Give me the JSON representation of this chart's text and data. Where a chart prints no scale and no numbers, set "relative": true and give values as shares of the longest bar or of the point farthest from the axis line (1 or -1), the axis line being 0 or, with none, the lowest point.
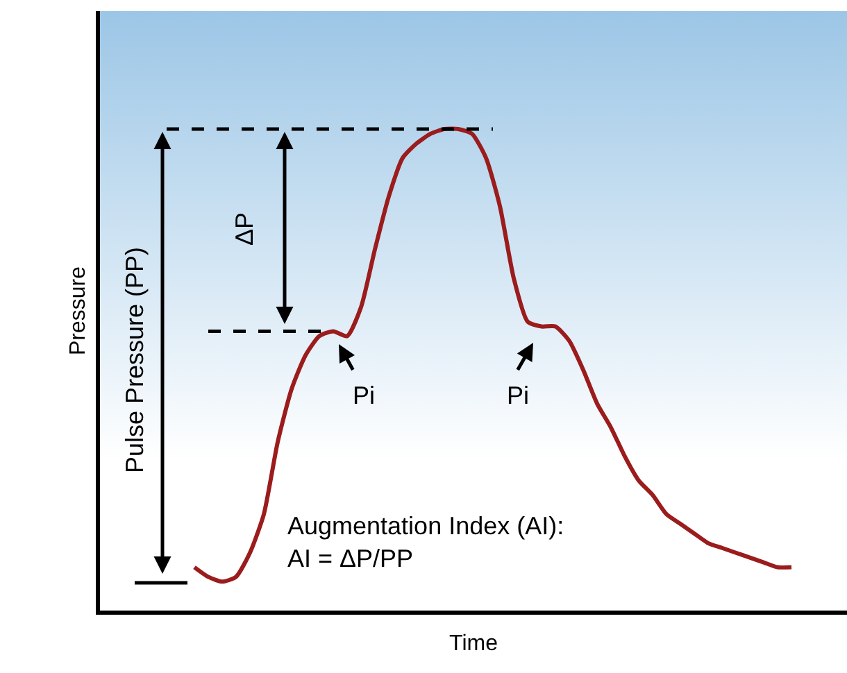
{
  "chart_data": {
    "type": "line",
    "relative": true,
    "xlabel": "Time",
    "ylabel": "Pressure",
    "categories": [
      null,
      null,
      null,
      null,
      null,
      null,
      null,
      null,
      null,
      null,
      null,
      null,
      null,
      null,
      null,
      null,
      null,
      null,
      null,
      null,
      null,
      null,
      null,
      null,
      null,
      null,
      null,
      null,
      null,
      null,
      null,
      null,
      null,
      null,
      null,
      null,
      null,
      null,
      null,
      null,
      null,
      null,
      null,
      null
    ],
    "series": [
      {
        "color": "#9b1c1c",
        "values": [
          0.09,
          0.07,
          0.06,
          0.07,
          0.12,
          0.2,
          0.35,
          0.46,
          0.53,
          0.57,
          0.58,
          0.57,
          0.63,
          0.75,
          0.86,
          0.94,
          0.97,
          0.99,
          1,
          1,
          0.99,
          0.94,
          0.84,
          0.69,
          0.6,
          0.59,
          0.59,
          0.56,
          0.5,
          0.43,
          0.38,
          0.32,
          0.27,
          0.24,
          0.2,
          0.18,
          0.16,
          0.14,
          0.13,
          0.12,
          0.11,
          0.1,
          0.09,
          0.09
        ]
      }
    ],
    "ref_lines": [
      {
        "axis": "y",
        "value": 1,
        "line_style": "dashed",
        "color": "#000000"
      },
      {
        "axis": "y",
        "value": 0.58,
        "line_style": "dashed",
        "color": "#000000"
      }
    ],
    "annotations": [
      "ΔP",
      "Pi",
      "Pi",
      "Pulse Pressure (PP)",
      "Augmentation Index (AI):\nAI = ΔP/PP"
    ],
    "marker": "none",
    "line_style": "solid"
  }
}
